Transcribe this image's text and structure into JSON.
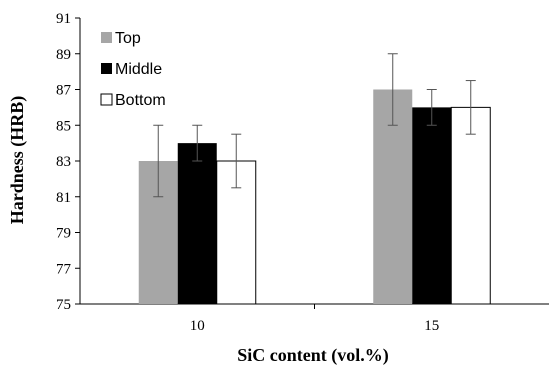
{
  "chart_data": {
    "type": "bar",
    "categories": [
      "10",
      "15"
    ],
    "series": [
      {
        "name": "Top",
        "values": [
          83,
          87
        ],
        "errors": [
          2,
          2
        ],
        "color": "#a6a6a6"
      },
      {
        "name": "Middle",
        "values": [
          84,
          86
        ],
        "errors": [
          1,
          1
        ],
        "color": "#000000"
      },
      {
        "name": "Bottom",
        "values": [
          83,
          86
        ],
        "errors": [
          1.5,
          1.5
        ],
        "color": "#ffffff"
      }
    ],
    "xlabel": "SiC content (vol.%)",
    "ylabel": "Hardness (HRB)",
    "ylim": [
      75,
      91
    ],
    "yticks": [
      75,
      77,
      79,
      81,
      83,
      85,
      87,
      89,
      91
    ],
    "legend_position": "top-left",
    "grid": false
  }
}
